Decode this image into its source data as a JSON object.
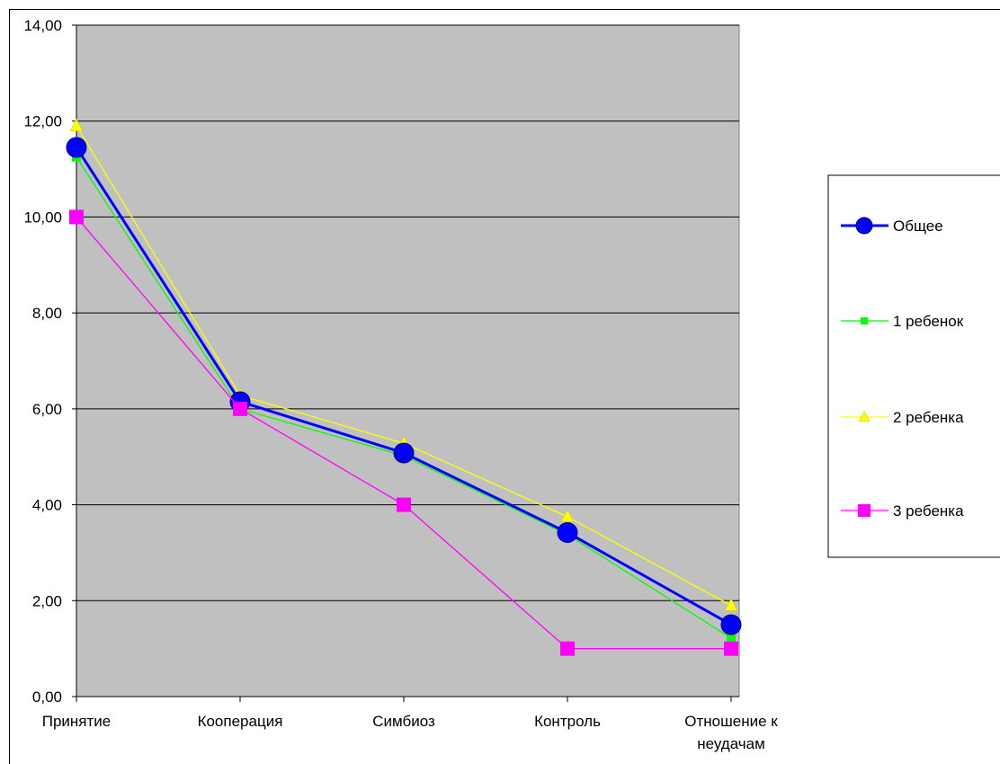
{
  "chart_data": {
    "type": "line",
    "categories": [
      "Принятие",
      "Кооперация",
      "Симбиоз",
      "Контроль",
      "Отношение к неудачам"
    ],
    "ylim": [
      0,
      14
    ],
    "yticks": [
      "0,00",
      "2,00",
      "4,00",
      "6,00",
      "8,00",
      "10,00",
      "12,00",
      "14,00"
    ],
    "ytick_values": [
      0,
      2,
      4,
      6,
      8,
      10,
      12,
      14
    ],
    "grid": true,
    "legend_position": "right",
    "plot_background": "#C0C0C0",
    "series": [
      {
        "name": "Общее",
        "values": [
          11.45,
          6.15,
          5.08,
          3.42,
          1.5
        ],
        "color": "#0000FF",
        "marker": "circle",
        "line_width": 3
      },
      {
        "name": "1 ребенок",
        "values": [
          11.25,
          6.0,
          5.02,
          3.38,
          1.22
        ],
        "color": "#00FF00",
        "marker": "square",
        "line_width": 1.3
      },
      {
        "name": "2 ребенка",
        "values": [
          11.9,
          6.28,
          5.28,
          3.75,
          1.9
        ],
        "color": "#FFFF00",
        "marker": "triangle",
        "line_width": 1.3
      },
      {
        "name": "3 ребенка",
        "values": [
          10.0,
          6.0,
          4.0,
          1.0,
          1.0
        ],
        "color": "#FF00FF",
        "marker": "square",
        "line_width": 1.3
      }
    ]
  }
}
